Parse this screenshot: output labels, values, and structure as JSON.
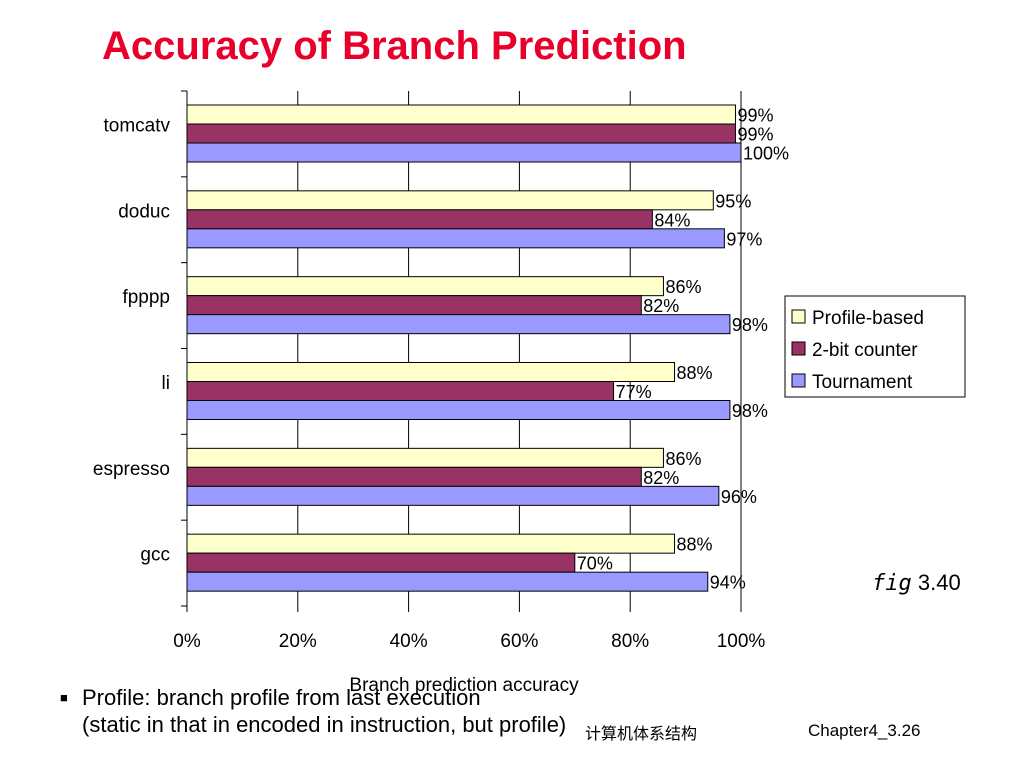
{
  "slide": {
    "title": "Accuracy of Branch Prediction",
    "fig_word": "fig",
    "fig_number": "3.40",
    "bullet_line1": "Profile: branch profile from last execution",
    "bullet_line2": "(static in that in encoded in instruction, but profile)",
    "bullet_marker": "■",
    "footer_center": "计算机体系结构",
    "footer_right": "Chapter4_3.26"
  },
  "chart_data": {
    "type": "bar",
    "orientation": "horizontal",
    "categories": [
      "tomcatv",
      "doduc",
      "fpppp",
      "li",
      "espresso",
      "gcc"
    ],
    "series": [
      {
        "name": "Profile-based",
        "values": [
          99,
          95,
          86,
          88,
          86,
          88
        ],
        "labels": [
          "99%",
          "95%",
          "86%",
          "88%",
          "86%",
          "88%"
        ],
        "color": "#ffffcc"
      },
      {
        "name": "2-bit counter",
        "values": [
          99,
          84,
          82,
          77,
          82,
          70
        ],
        "labels": [
          "99%",
          "84%",
          "82%",
          "77%",
          "82%",
          "70%"
        ],
        "color": "#993366"
      },
      {
        "name": "Tournament",
        "values": [
          100,
          97,
          98,
          98,
          96,
          94
        ],
        "labels": [
          "100%",
          "97%",
          "98%",
          "98%",
          "96%",
          "94%"
        ],
        "color": "#9999ff"
      }
    ],
    "xlabel": "Branch prediction accuracy",
    "xlim": [
      0,
      100
    ],
    "xticks": [
      "0%",
      "20%",
      "40%",
      "60%",
      "80%",
      "100%"
    ],
    "grid": "vertical",
    "legend": "right"
  }
}
